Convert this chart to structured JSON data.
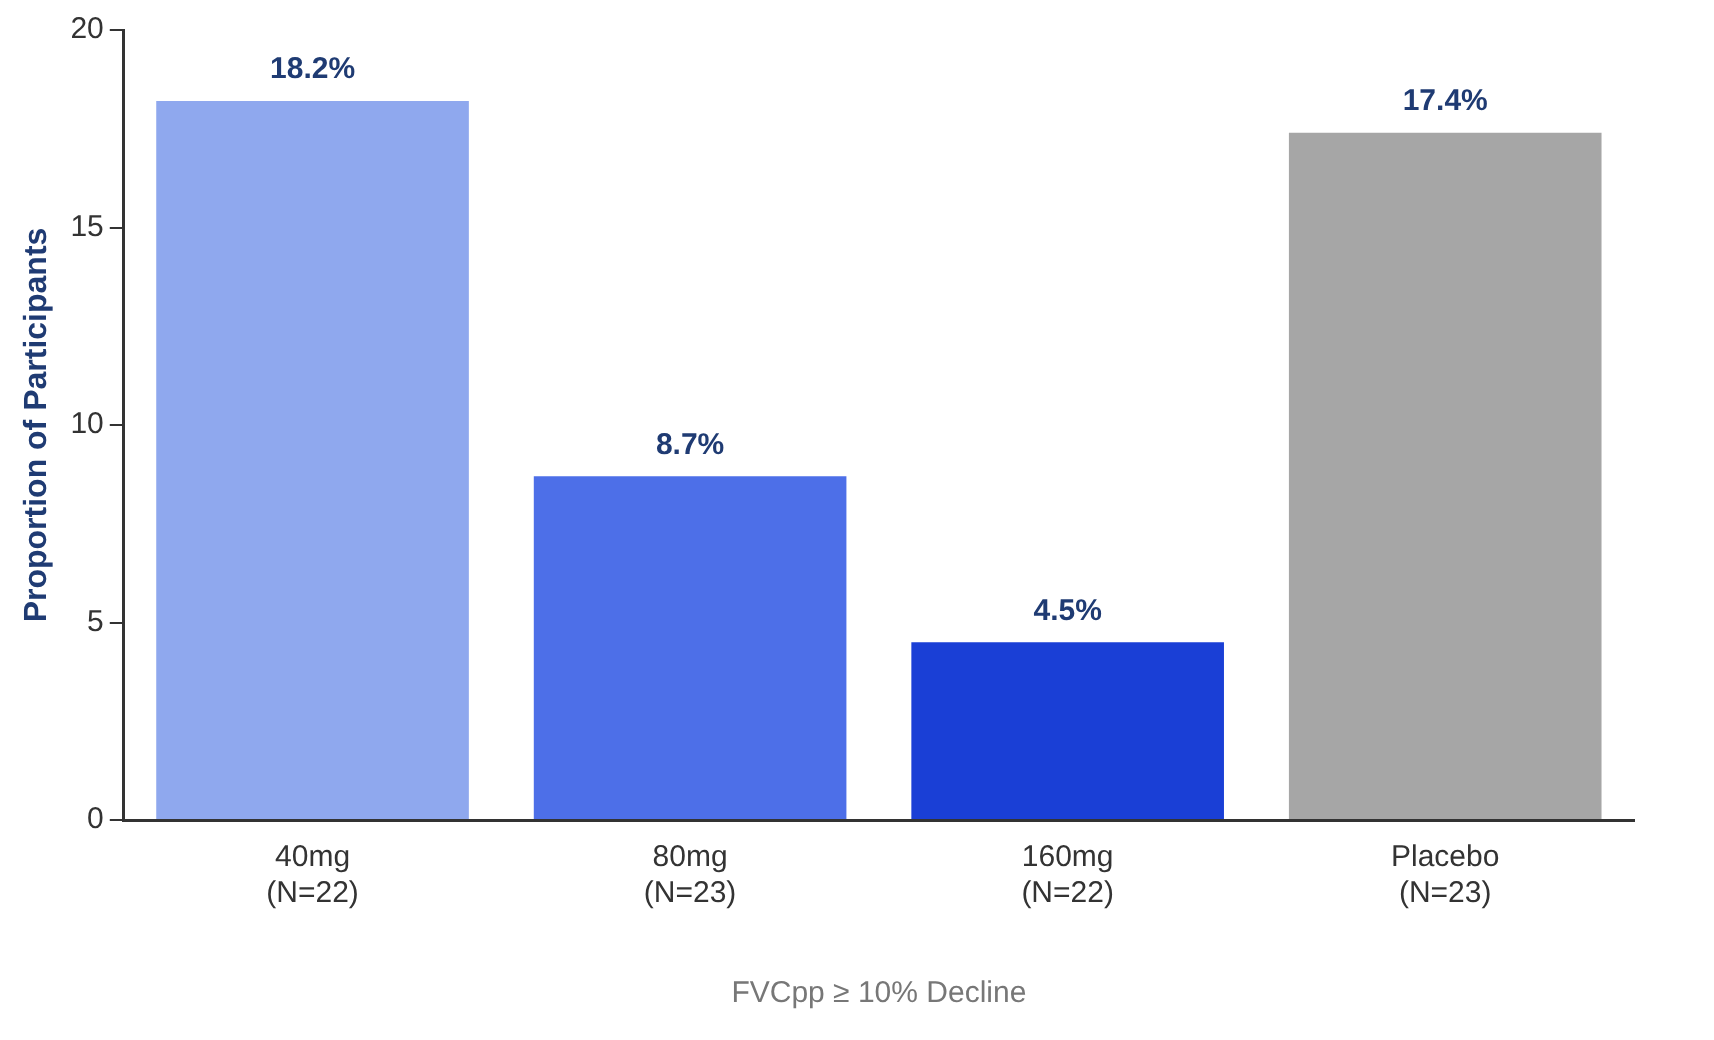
{
  "chart_data": {
    "type": "bar",
    "xlabel": "FVCpp ≥ 10% Decline",
    "ylabel": "Proportion of Participants",
    "categories": [
      "40mg\n(N=22)",
      "80mg\n(N=23)",
      "160mg\n(N=22)",
      "Placebo\n(N=23)"
    ],
    "values": [
      18.2,
      8.7,
      4.5,
      17.4
    ],
    "colors": [
      "#8fa8ee",
      "#4d6fe8",
      "#1a3fd6",
      "#a6a6a6"
    ],
    "value_labels": [
      "18.2%",
      "8.7%",
      "4.5%",
      "17.4%"
    ],
    "ylim": [
      0,
      20
    ],
    "yticks": [
      0,
      5,
      10,
      15,
      20
    ],
    "grid": false,
    "legend": false
  }
}
